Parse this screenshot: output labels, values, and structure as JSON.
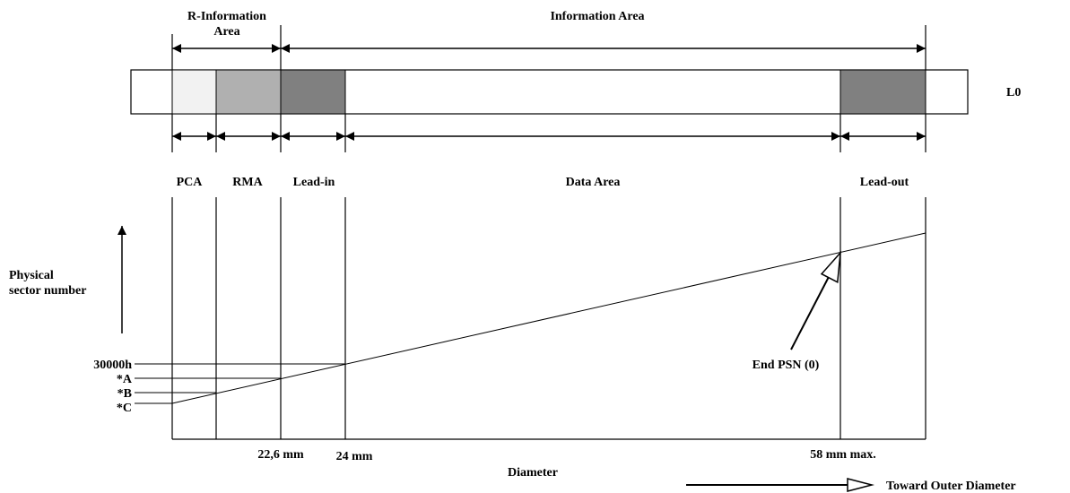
{
  "header": {
    "r_info_line1": "R-Information",
    "r_info_line2": "Area",
    "info_area": "Information Area"
  },
  "layer_label": "L0",
  "areas": {
    "pca": "PCA",
    "rma": "RMA",
    "lead_in": "Lead-in",
    "data_area": "Data Area",
    "lead_out": "Lead-out"
  },
  "y_axis": {
    "line1": "Physical",
    "line2": "sector number"
  },
  "psn_labels": {
    "p30000h": "30000h",
    "a": "*A",
    "b": "*B",
    "c": "*C"
  },
  "end_psn": "End PSN (0)",
  "x_ticks": {
    "t226": "22,6 mm",
    "t24": "24 mm",
    "t58": "58 mm max."
  },
  "x_axis": {
    "label": "Diameter"
  },
  "direction_label": "Toward Outer Diameter",
  "colors": {
    "pca_fill": "#f2f2f2",
    "rma_fill": "#b0b0b0",
    "lead_fill": "#808080",
    "line": "#000000"
  }
}
